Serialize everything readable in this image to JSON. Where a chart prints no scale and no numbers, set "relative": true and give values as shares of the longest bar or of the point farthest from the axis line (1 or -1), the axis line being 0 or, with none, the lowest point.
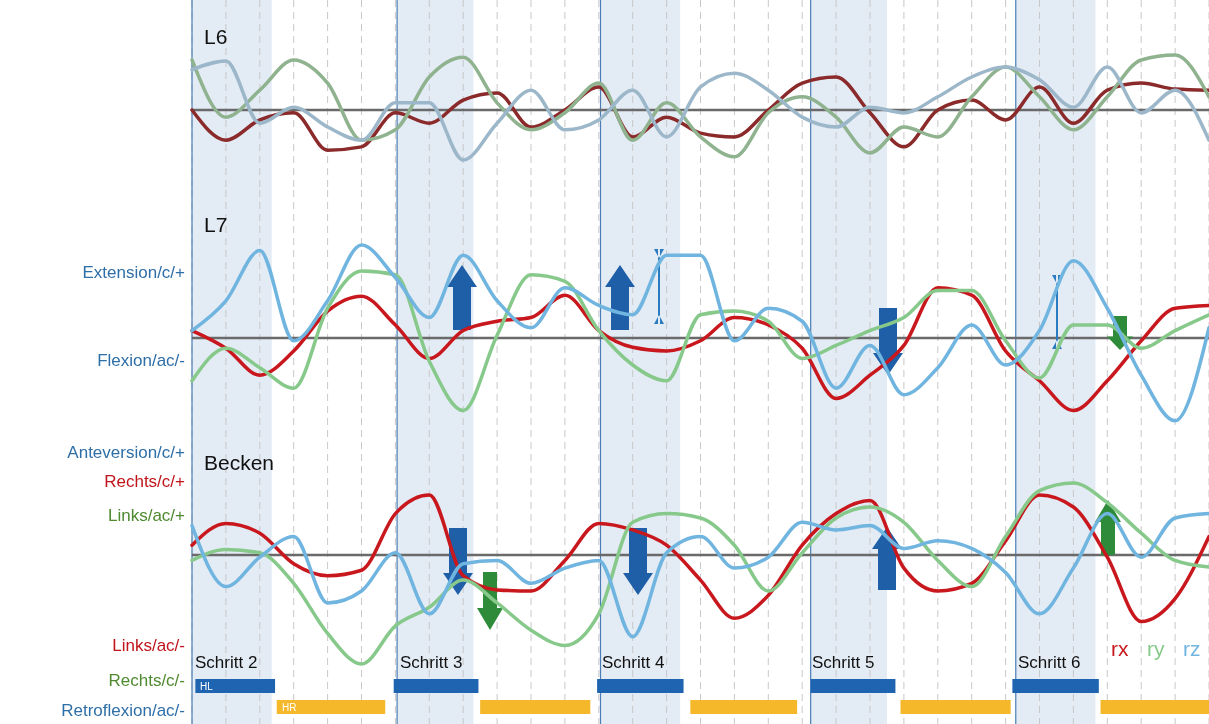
{
  "chart_data": [
    {
      "type": "line",
      "title": "L6",
      "relative": true,
      "grid": true,
      "categories": [
        null,
        null,
        null,
        null,
        null,
        null,
        null,
        null,
        null,
        null,
        null,
        null,
        null,
        null,
        null,
        null,
        null,
        null,
        null,
        null,
        null,
        null,
        null,
        null,
        null,
        null,
        null,
        null,
        null,
        null,
        null
      ],
      "series": [
        {
          "color": "#8b2a2a",
          "values": [
            0,
            -0.55,
            -0.18,
            -0.05,
            -0.73,
            -0.67,
            -0.05,
            -0.24,
            0.18,
            0.31,
            -0.31,
            0,
            0.42,
            -0.49,
            -0.13,
            -0.42,
            -0.49,
            0,
            0.49,
            0.6,
            -0.05,
            -0.67,
            0,
            0.18,
            -0.18,
            0.42,
            -0.24,
            0.36,
            0.49,
            0.38,
            0.36
          ]
        },
        {
          "color": "#8fb28f",
          "values": [
            0.91,
            -0.13,
            0.36,
            0.91,
            0.49,
            -0.55,
            -0.36,
            0.6,
            0.96,
            0.13,
            -0.36,
            -0.05,
            0.49,
            -0.55,
            0.13,
            -0.49,
            -0.85,
            -0.05,
            0.24,
            -0.13,
            -0.78,
            -0.31,
            -0.49,
            0.24,
            0.78,
            0.24,
            -0.36,
            0.24,
            0.91,
            1,
            0.24
          ]
        },
        {
          "color": "#9cb7c9",
          "values": [
            0.73,
            0.89,
            -0.24,
            0.05,
            -0.31,
            -0.55,
            0.13,
            0.13,
            -0.91,
            -0.24,
            0.36,
            -0.36,
            -0.18,
            0.36,
            -0.49,
            0.42,
            0.67,
            0.36,
            -0.13,
            -0.31,
            0.05,
            -0.05,
            0.24,
            0.6,
            0.78,
            0.55,
            0.05,
            0.78,
            -0.05,
            0.36,
            -0.55
          ]
        }
      ]
    },
    {
      "type": "line",
      "title": "L7",
      "relative": true,
      "grid": true,
      "categories": [
        null,
        null,
        null,
        null,
        null,
        null,
        null,
        null,
        null,
        null,
        null,
        null,
        null,
        null,
        null,
        null,
        null,
        null,
        null,
        null,
        null,
        null,
        null,
        null,
        null,
        null,
        null,
        null,
        null,
        null,
        null
      ],
      "annotations": [
        "Extension/c/+",
        "Flexion/ac/-"
      ],
      "series": [
        {
          "color": "#c8181e",
          "values": [
            0.08,
            -0.11,
            -0.4,
            -0.14,
            0.29,
            0.45,
            0.14,
            -0.22,
            0.08,
            0.18,
            0.22,
            0.46,
            0.08,
            -0.1,
            -0.14,
            -0.03,
            0.22,
            0.14,
            -0.11,
            -0.65,
            -0.4,
            -0.08,
            0.54,
            0.46,
            -0.14,
            -0.46,
            -0.78,
            -0.46,
            -0.03,
            0.32,
            0.35
          ]
        },
        {
          "color": "#86c98a",
          "values": [
            -0.46,
            -0.11,
            -0.32,
            -0.54,
            0.32,
            0.72,
            0.68,
            -0.25,
            -0.78,
            0.03,
            0.68,
            0.61,
            0.08,
            -0.29,
            -0.46,
            0.25,
            0.29,
            0.18,
            -0.22,
            -0.08,
            0.08,
            0.22,
            0.51,
            0.51,
            -0.03,
            -0.43,
            0.14,
            0.14,
            -0.11,
            0.08,
            0.25
          ]
        },
        {
          "color": "#70b4e0",
          "values": [
            0.08,
            0.4,
            0.94,
            -0.03,
            0.4,
            1,
            0.65,
            0.22,
            0.89,
            0.4,
            0.11,
            0.54,
            0.35,
            0.25,
            0.89,
            0.89,
            -0.03,
            0.32,
            0.18,
            -0.54,
            -0.08,
            -0.61,
            -0.32,
            0.14,
            -0.29,
            0.08,
            0.83,
            0.32,
            -0.4,
            -0.89,
            0.11
          ]
        }
      ]
    },
    {
      "type": "line",
      "title": "Becken",
      "relative": true,
      "grid": true,
      "legend": "bottom right",
      "categories": [
        null,
        null,
        null,
        null,
        null,
        null,
        null,
        null,
        null,
        null,
        null,
        null,
        null,
        null,
        null,
        null,
        null,
        null,
        null,
        null,
        null,
        null,
        null,
        null,
        null,
        null,
        null,
        null,
        null,
        null,
        null
      ],
      "annotations": [
        "Anteversion/c/+",
        "Rechts/c/+",
        "Links/ac/+",
        "Links/ac/-",
        "Rechts/c/-",
        "Retroflexion/ac/-",
        "Schritt 2",
        "Schritt 3",
        "Schritt 4",
        "Schritt 5",
        "Schritt 6",
        "HL",
        "HR"
      ],
      "series": [
        {
          "name": "rx",
          "color": "#c8181e",
          "values": [
            0.09,
            0.29,
            0.2,
            -0.08,
            -0.19,
            -0.14,
            0.38,
            0.55,
            -0.19,
            -0.32,
            -0.33,
            -0.05,
            0.29,
            0.23,
            0.09,
            -0.23,
            -0.58,
            -0.37,
            0.09,
            0.38,
            0.5,
            -0.12,
            -0.33,
            -0.26,
            0.13,
            0.55,
            0.44,
            -0.02,
            -0.61,
            -0.4,
            0.17
          ]
        },
        {
          "name": "ry",
          "color": "#86c98a",
          "values": [
            -0.05,
            0.05,
            0.02,
            -0.26,
            -0.72,
            -1,
            -0.65,
            -0.48,
            -0.23,
            -0.44,
            -0.69,
            -0.83,
            -0.54,
            0.3,
            0.38,
            0.34,
            0.09,
            -0.33,
            0.02,
            0.34,
            0.44,
            0.3,
            -0.05,
            -0.29,
            0.17,
            0.59,
            0.66,
            0.48,
            0.2,
            -0.05,
            -0.11
          ]
        },
        {
          "name": "rz",
          "color": "#70b4e0",
          "values": [
            0.27,
            -0.29,
            -0.02,
            0.17,
            -0.44,
            -0.33,
            0.02,
            -0.54,
            -0.08,
            -0.05,
            -0.26,
            -0.12,
            -0.05,
            -0.75,
            0.02,
            0.17,
            -0.12,
            -0.02,
            0.3,
            0.23,
            0.27,
            0.06,
            0.13,
            0.06,
            -0.16,
            -0.54,
            -0.12,
            0.38,
            -0.02,
            0.34,
            0.38
          ]
        }
      ]
    }
  ]
}
